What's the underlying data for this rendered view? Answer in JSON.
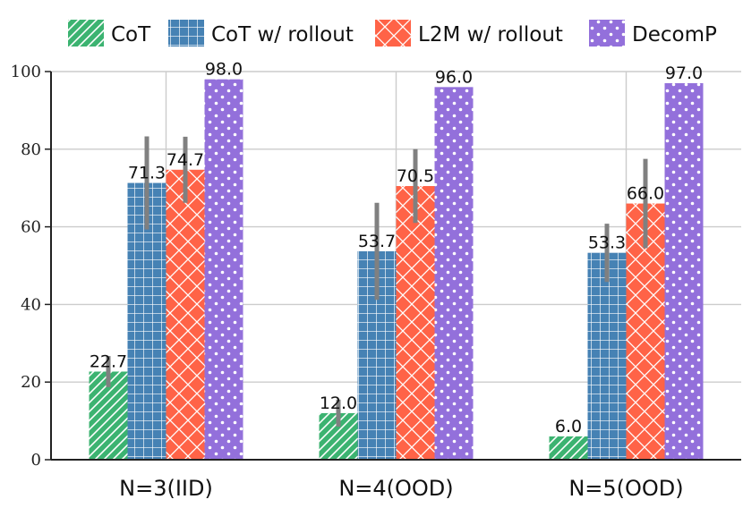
{
  "chart_data": {
    "type": "bar",
    "categories": [
      "N=3(IID)",
      "N=4(OOD)",
      "N=5(OOD)"
    ],
    "series": [
      {
        "name": "CoT",
        "values": [
          22.7,
          12.0,
          6.0
        ],
        "errors": [
          4.0,
          3.5,
          0.0
        ],
        "color": "#3cb371",
        "pattern": "diagonal"
      },
      {
        "name": "CoT w/ rollout",
        "values": [
          71.3,
          53.7,
          53.3
        ],
        "errors": [
          12.0,
          12.5,
          7.5
        ],
        "color": "#4682b4",
        "pattern": "grid"
      },
      {
        "name": "L2M w/ rollout",
        "values": [
          74.7,
          70.5,
          66.0
        ],
        "errors": [
          8.5,
          9.5,
          11.5
        ],
        "color": "#ff6347",
        "pattern": "crosshatch"
      },
      {
        "name": "DecomP",
        "values": [
          98.0,
          96.0,
          97.0
        ],
        "errors": [
          0.0,
          0.0,
          0.0
        ],
        "color": "#9370db",
        "pattern": "dots"
      }
    ],
    "data_labels": [
      [
        "22.7",
        "12.0",
        "6.0"
      ],
      [
        "71.3",
        "53.7",
        "53.3"
      ],
      [
        "74.7",
        "70.5",
        "66.0"
      ],
      [
        "98.0",
        "96.0",
        "97.0"
      ]
    ],
    "ylim": [
      0,
      100
    ],
    "yticks": [
      "0",
      "20",
      "40",
      "60",
      "80",
      "100"
    ],
    "grid": true,
    "legend_position": "top",
    "error_bar_color": "#808080",
    "title": "",
    "xlabel": "",
    "ylabel": ""
  }
}
